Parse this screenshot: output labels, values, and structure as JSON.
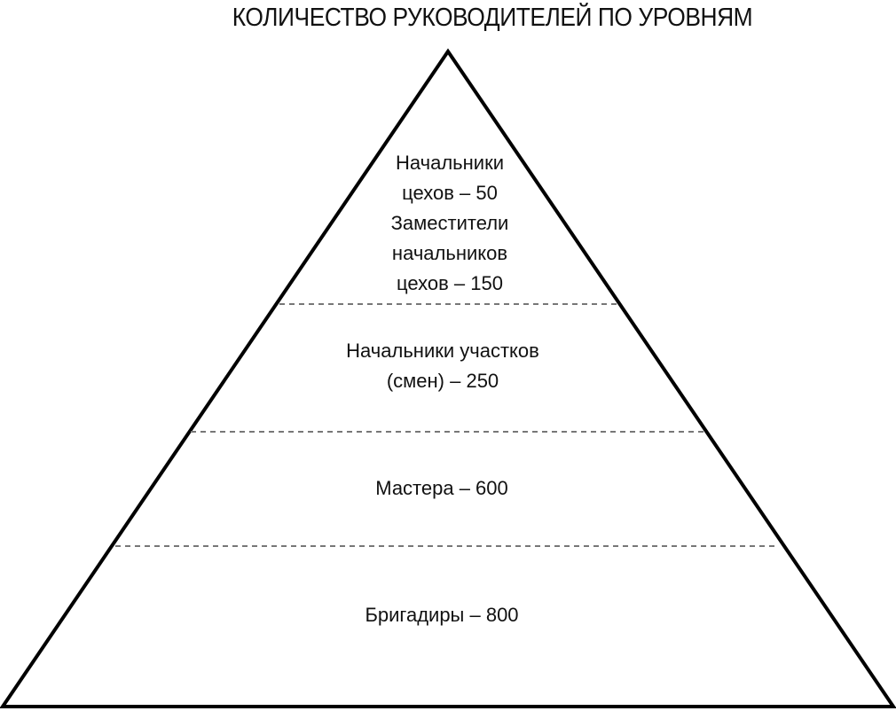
{
  "title": "КОЛИЧЕСТВО РУКОВОДИТЕЛЕЙ ПО УРОВНЯМ",
  "levels": [
    {
      "lines": [
        "Начальники",
        "цехов – 50",
        "Заместители",
        "начальников",
        "цехов – 150"
      ]
    },
    {
      "lines": [
        "Начальники участков",
        "(смен) – 250"
      ]
    },
    {
      "lines": [
        "Мастера – 600"
      ]
    },
    {
      "lines": [
        "Бригадиры – 800"
      ]
    }
  ],
  "colors": {
    "outline": "#000000",
    "divider": "#777777"
  }
}
